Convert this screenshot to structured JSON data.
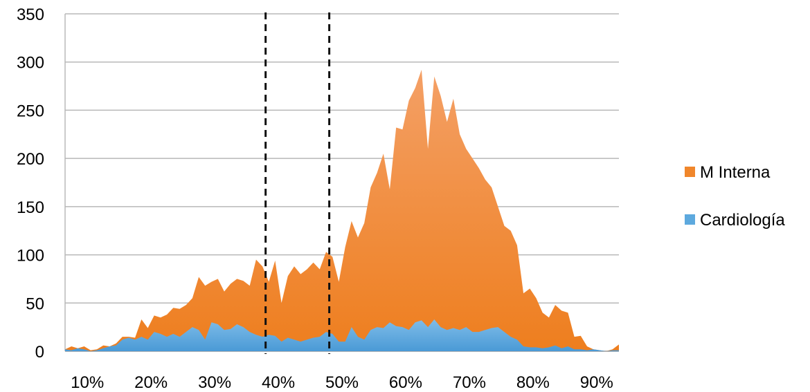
{
  "chart_data": {
    "type": "area",
    "x_unit": "percent",
    "xlim": [
      8,
      95
    ],
    "ylim": [
      0,
      350
    ],
    "y_ticks": [
      0,
      50,
      100,
      150,
      200,
      250,
      300,
      350
    ],
    "x_ticks": [
      {
        "value": 11.5,
        "label": "10%"
      },
      {
        "value": 21.5,
        "label": "20%"
      },
      {
        "value": 31.5,
        "label": "30%"
      },
      {
        "value": 41.5,
        "label": "40%"
      },
      {
        "value": 51.5,
        "label": "50%"
      },
      {
        "value": 61.5,
        "label": "60%"
      },
      {
        "value": 71.5,
        "label": "70%"
      },
      {
        "value": 81.5,
        "label": "80%"
      },
      {
        "value": 91.5,
        "label": "90%"
      }
    ],
    "y_tick_labels": [
      "0",
      "50",
      "100",
      "150",
      "200",
      "250",
      "300",
      "350"
    ],
    "grid": "horizontal",
    "legend_position": "right",
    "vertical_reference_lines": [
      39.5,
      49.5
    ],
    "series": [
      {
        "name": "M Interna",
        "color": "#F0862B",
        "points": [
          [
            8,
            2
          ],
          [
            9,
            5
          ],
          [
            10,
            3
          ],
          [
            11,
            5
          ],
          [
            12,
            1
          ],
          [
            13,
            2
          ],
          [
            14,
            6
          ],
          [
            15,
            5
          ],
          [
            16,
            8
          ],
          [
            17,
            15
          ],
          [
            18,
            15
          ],
          [
            19,
            14
          ],
          [
            20,
            33
          ],
          [
            21,
            24
          ],
          [
            22,
            37
          ],
          [
            23,
            35
          ],
          [
            24,
            38
          ],
          [
            25,
            45
          ],
          [
            26,
            44
          ],
          [
            27,
            48
          ],
          [
            28,
            55
          ],
          [
            29,
            77
          ],
          [
            30,
            68
          ],
          [
            31,
            72
          ],
          [
            32,
            75
          ],
          [
            33,
            62
          ],
          [
            34,
            70
          ],
          [
            35,
            75
          ],
          [
            36,
            73
          ],
          [
            37,
            68
          ],
          [
            38,
            95
          ],
          [
            39,
            88
          ],
          [
            40,
            72
          ],
          [
            41,
            94
          ],
          [
            42,
            50
          ],
          [
            43,
            78
          ],
          [
            44,
            88
          ],
          [
            45,
            80
          ],
          [
            46,
            85
          ],
          [
            47,
            92
          ],
          [
            48,
            85
          ],
          [
            49,
            103
          ],
          [
            50,
            98
          ],
          [
            51,
            72
          ],
          [
            52,
            108
          ],
          [
            53,
            135
          ],
          [
            54,
            118
          ],
          [
            55,
            133
          ],
          [
            56,
            170
          ],
          [
            57,
            185
          ],
          [
            58,
            205
          ],
          [
            59,
            168
          ],
          [
            60,
            232
          ],
          [
            61,
            230
          ],
          [
            62,
            260
          ],
          [
            63,
            273
          ],
          [
            64,
            292
          ],
          [
            65,
            210
          ],
          [
            66,
            285
          ],
          [
            67,
            265
          ],
          [
            68,
            238
          ],
          [
            69,
            262
          ],
          [
            70,
            225
          ],
          [
            71,
            210
          ],
          [
            72,
            200
          ],
          [
            73,
            190
          ],
          [
            74,
            178
          ],
          [
            75,
            170
          ],
          [
            76,
            150
          ],
          [
            77,
            130
          ],
          [
            78,
            125
          ],
          [
            79,
            110
          ],
          [
            80,
            60
          ],
          [
            81,
            65
          ],
          [
            82,
            55
          ],
          [
            83,
            40
          ],
          [
            84,
            35
          ],
          [
            85,
            48
          ],
          [
            86,
            42
          ],
          [
            87,
            40
          ],
          [
            88,
            15
          ],
          [
            89,
            16
          ],
          [
            90,
            5
          ],
          [
            91,
            2
          ],
          [
            92,
            1
          ],
          [
            93,
            0
          ],
          [
            94,
            2
          ],
          [
            95,
            7
          ]
        ]
      },
      {
        "name": "Cardiología",
        "color": "#5DA9DE",
        "points": [
          [
            8,
            2
          ],
          [
            9,
            1
          ],
          [
            10,
            3
          ],
          [
            11,
            2
          ],
          [
            12,
            0
          ],
          [
            13,
            1
          ],
          [
            14,
            3
          ],
          [
            15,
            5
          ],
          [
            16,
            6
          ],
          [
            17,
            12
          ],
          [
            18,
            14
          ],
          [
            19,
            12
          ],
          [
            20,
            15
          ],
          [
            21,
            12
          ],
          [
            22,
            20
          ],
          [
            23,
            18
          ],
          [
            24,
            15
          ],
          [
            25,
            18
          ],
          [
            26,
            15
          ],
          [
            27,
            20
          ],
          [
            28,
            25
          ],
          [
            29,
            22
          ],
          [
            30,
            12
          ],
          [
            31,
            30
          ],
          [
            32,
            28
          ],
          [
            33,
            22
          ],
          [
            34,
            23
          ],
          [
            35,
            28
          ],
          [
            36,
            25
          ],
          [
            37,
            20
          ],
          [
            38,
            17
          ],
          [
            39,
            15
          ],
          [
            40,
            17
          ],
          [
            41,
            16
          ],
          [
            42,
            10
          ],
          [
            43,
            14
          ],
          [
            44,
            12
          ],
          [
            45,
            10
          ],
          [
            46,
            12
          ],
          [
            47,
            14
          ],
          [
            48,
            15
          ],
          [
            49,
            20
          ],
          [
            50,
            18
          ],
          [
            51,
            10
          ],
          [
            52,
            10
          ],
          [
            53,
            25
          ],
          [
            54,
            15
          ],
          [
            55,
            12
          ],
          [
            56,
            22
          ],
          [
            57,
            25
          ],
          [
            58,
            24
          ],
          [
            59,
            30
          ],
          [
            60,
            26
          ],
          [
            61,
            25
          ],
          [
            62,
            22
          ],
          [
            63,
            30
          ],
          [
            64,
            32
          ],
          [
            65,
            25
          ],
          [
            66,
            33
          ],
          [
            67,
            25
          ],
          [
            68,
            22
          ],
          [
            69,
            24
          ],
          [
            70,
            22
          ],
          [
            71,
            25
          ],
          [
            72,
            20
          ],
          [
            73,
            20
          ],
          [
            74,
            22
          ],
          [
            75,
            24
          ],
          [
            76,
            25
          ],
          [
            77,
            20
          ],
          [
            78,
            15
          ],
          [
            79,
            12
          ],
          [
            80,
            5
          ],
          [
            81,
            4
          ],
          [
            82,
            4
          ],
          [
            83,
            3
          ],
          [
            84,
            4
          ],
          [
            85,
            6
          ],
          [
            86,
            3
          ],
          [
            87,
            5
          ],
          [
            88,
            2
          ],
          [
            89,
            2
          ],
          [
            90,
            1
          ],
          [
            91,
            2
          ],
          [
            92,
            1
          ],
          [
            93,
            0
          ],
          [
            94,
            1
          ],
          [
            95,
            1
          ]
        ]
      }
    ]
  },
  "legend": [
    {
      "label": "M Interna",
      "color": "#F0862B"
    },
    {
      "label": "Cardiología",
      "color": "#5DA9DE"
    }
  ]
}
